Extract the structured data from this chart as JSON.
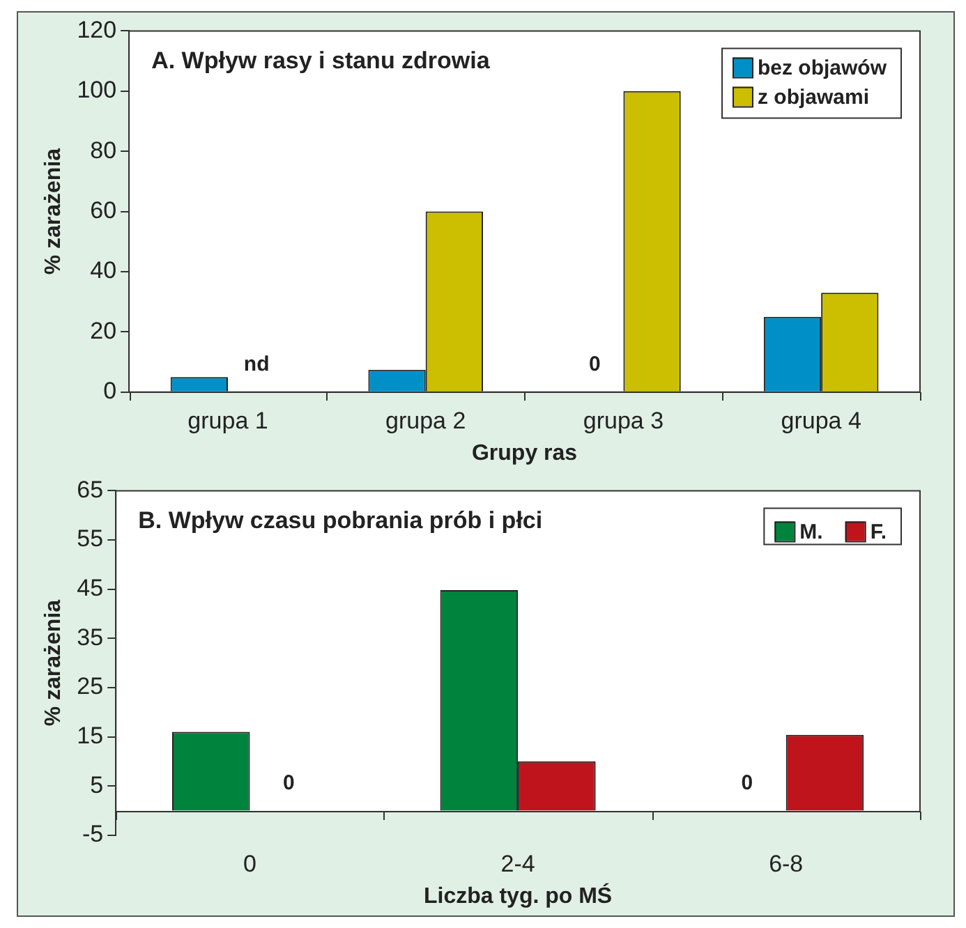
{
  "chart_data": [
    {
      "type": "bar",
      "title": "A. Wpływ rasy i stanu zdrowia",
      "xlabel": "Grupy ras",
      "ylabel": "% zarażenia",
      "categories": [
        "grupa 1",
        "grupa 2",
        "grupa 3",
        "grupa 4"
      ],
      "series": [
        {
          "name": "bez objawów",
          "color": "#0090c8",
          "values": [
            5,
            7.4,
            0,
            25
          ]
        },
        {
          "name": "z objawami",
          "color": "#ccbe00",
          "values": [
            null,
            60,
            100,
            33
          ],
          "value_labels": [
            "nd",
            null,
            null,
            null
          ]
        }
      ],
      "annotations": [
        {
          "text": "0",
          "x": "grupa 3",
          "y": 0
        }
      ],
      "ylim": [
        0,
        120
      ],
      "yticks": [
        0,
        20,
        40,
        60,
        80,
        100,
        120
      ],
      "grid": false,
      "legend": "top right"
    },
    {
      "type": "bar",
      "title": "B. Wpływ czasu pobrania prób i płci",
      "xlabel": "Liczba tyg. po MŚ",
      "ylabel": "% zarażenia",
      "categories": [
        "0",
        "2-4",
        "6-8"
      ],
      "series": [
        {
          "name": "M.",
          "color": "#00843d",
          "values": [
            16,
            44.8,
            0
          ]
        },
        {
          "name": "F.",
          "color": "#c0141c",
          "values": [
            0,
            10,
            15.4
          ]
        }
      ],
      "annotations": [
        {
          "text": "0",
          "x": "0",
          "y": 0
        },
        {
          "text": "0",
          "x": "6-8",
          "y": 0
        }
      ],
      "ylim": [
        -5,
        65
      ],
      "yticks": [
        -5,
        5,
        15,
        25,
        35,
        45,
        55,
        65
      ],
      "grid": false,
      "legend": "top right"
    }
  ]
}
